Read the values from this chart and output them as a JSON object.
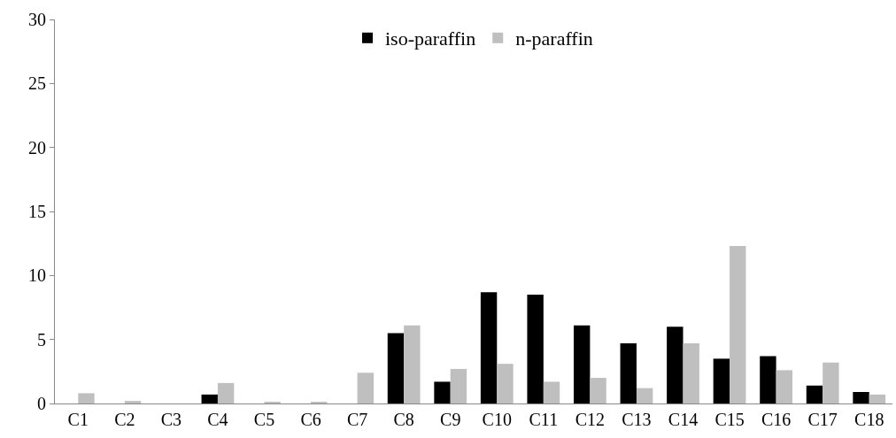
{
  "chart_data": {
    "type": "bar",
    "categories": [
      "C1",
      "C2",
      "C3",
      "C4",
      "C5",
      "C6",
      "C7",
      "C8",
      "C9",
      "C10",
      "C11",
      "C12",
      "C13",
      "C14",
      "C15",
      "C16",
      "C17",
      "C18"
    ],
    "series": [
      {
        "name": "iso-paraffin",
        "color": "#000000",
        "values": [
          0,
          0,
          0,
          0.7,
          0,
          0,
          0,
          5.5,
          1.7,
          8.7,
          8.5,
          6.1,
          4.7,
          6.0,
          3.5,
          3.7,
          1.4,
          0.9
        ]
      },
      {
        "name": "n-paraffin",
        "color": "#bfbfbf",
        "values": [
          0.8,
          0.2,
          0,
          1.6,
          0.1,
          0.1,
          2.4,
          6.1,
          2.7,
          3.1,
          1.7,
          2.0,
          1.2,
          4.7,
          12.3,
          2.6,
          3.2,
          0.7
        ]
      }
    ],
    "ylim": [
      0,
      30
    ],
    "yticks": [
      0,
      5,
      10,
      15,
      20,
      25,
      30
    ],
    "legend": "top"
  }
}
